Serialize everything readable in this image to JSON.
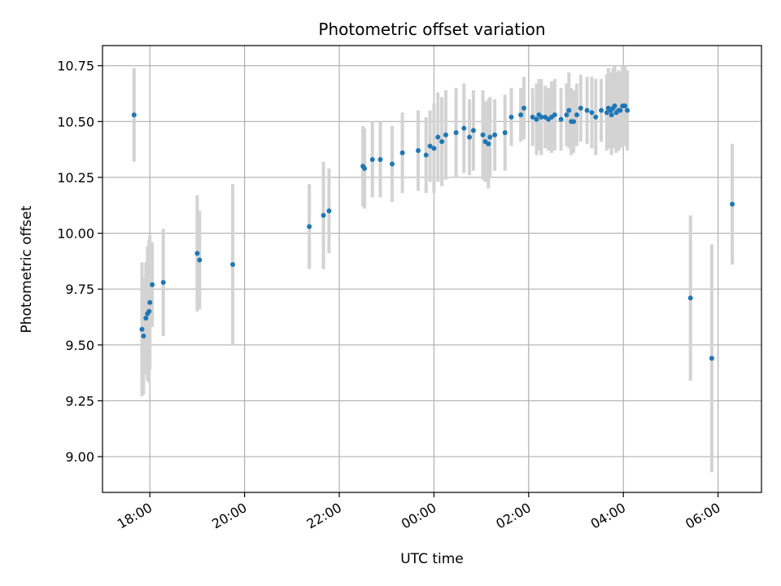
{
  "chart_data": {
    "type": "scatter",
    "title": "Photometric offset variation",
    "xlabel": "UTC time",
    "ylabel": "Photometric offset",
    "ylim": [
      8.84,
      10.84
    ],
    "xlim": [
      "17:00",
      "06:55"
    ],
    "grid": true,
    "point_color": "#1f77b4",
    "errorbar_color": "#d3d3d3",
    "x_ticks": [
      "18:00",
      "20:00",
      "22:00",
      "00:00",
      "02:00",
      "04:00",
      "06:00"
    ],
    "y_ticks": [
      "9.00",
      "9.25",
      "9.50",
      "9.75",
      "10.00",
      "10.25",
      "10.50",
      "10.75"
    ],
    "series": [
      {
        "x": [
          "17:40",
          "17:50",
          "17:52",
          "17:55",
          "17:57",
          "17:59",
          "18:00",
          "18:03",
          "18:17",
          "19:00",
          "19:03",
          "19:45",
          "21:22",
          "21:40",
          "21:47",
          "22:30",
          "22:32",
          "22:42",
          "22:52",
          "23:07",
          "23:20",
          "23:40",
          "23:50",
          "23:55",
          "00:00",
          "00:05",
          "00:10",
          "00:15",
          "00:28",
          "00:38",
          "00:45",
          "00:50",
          "01:02",
          "01:05",
          "01:09",
          "01:11",
          "01:17",
          "01:30",
          "01:38",
          "01:50",
          "01:54",
          "02:05",
          "02:10",
          "02:13",
          "02:16",
          "02:21",
          "02:25",
          "02:29",
          "02:33",
          "02:41",
          "02:48",
          "02:51",
          "02:54",
          "02:57",
          "03:01",
          "03:06",
          "03:14",
          "03:20",
          "03:25",
          "03:32",
          "03:39",
          "03:41",
          "03:44",
          "03:45",
          "03:47",
          "03:49",
          "03:51",
          "03:54",
          "03:56",
          "03:59",
          "04:02",
          "04:05",
          "05:25",
          "05:52",
          "06:18"
        ],
        "y": [
          10.53,
          9.57,
          9.54,
          9.62,
          9.64,
          9.65,
          9.69,
          9.77,
          9.78,
          9.91,
          9.88,
          9.86,
          10.03,
          10.08,
          10.1,
          10.3,
          10.29,
          10.33,
          10.33,
          10.31,
          10.36,
          10.37,
          10.35,
          10.39,
          10.38,
          10.43,
          10.41,
          10.44,
          10.45,
          10.47,
          10.43,
          10.46,
          10.44,
          10.41,
          10.4,
          10.43,
          10.44,
          10.45,
          10.52,
          10.53,
          10.56,
          10.52,
          10.51,
          10.53,
          10.52,
          10.52,
          10.51,
          10.52,
          10.53,
          10.51,
          10.53,
          10.55,
          10.5,
          10.5,
          10.53,
          10.56,
          10.55,
          10.54,
          10.52,
          10.55,
          10.54,
          10.56,
          10.55,
          10.53,
          10.56,
          10.57,
          10.54,
          10.55,
          10.55,
          10.57,
          10.57,
          10.55,
          9.71,
          9.44,
          10.13
        ],
        "yerr": [
          0.21,
          0.3,
          0.26,
          0.25,
          0.3,
          0.32,
          0.3,
          0.19,
          0.24,
          0.26,
          0.22,
          0.36,
          0.19,
          0.24,
          0.19,
          0.18,
          0.18,
          0.17,
          0.17,
          0.17,
          0.18,
          0.18,
          0.17,
          0.16,
          0.2,
          0.2,
          0.2,
          0.2,
          0.2,
          0.2,
          0.17,
          0.18,
          0.2,
          0.18,
          0.2,
          0.18,
          0.16,
          0.17,
          0.13,
          0.12,
          0.14,
          0.13,
          0.16,
          0.16,
          0.17,
          0.14,
          0.14,
          0.16,
          0.16,
          0.14,
          0.14,
          0.17,
          0.15,
          0.14,
          0.14,
          0.15,
          0.15,
          0.16,
          0.17,
          0.14,
          0.17,
          0.18,
          0.17,
          0.18,
          0.18,
          0.18,
          0.18,
          0.18,
          0.17,
          0.18,
          0.18,
          0.18,
          0.37,
          0.51,
          0.27
        ]
      }
    ]
  }
}
